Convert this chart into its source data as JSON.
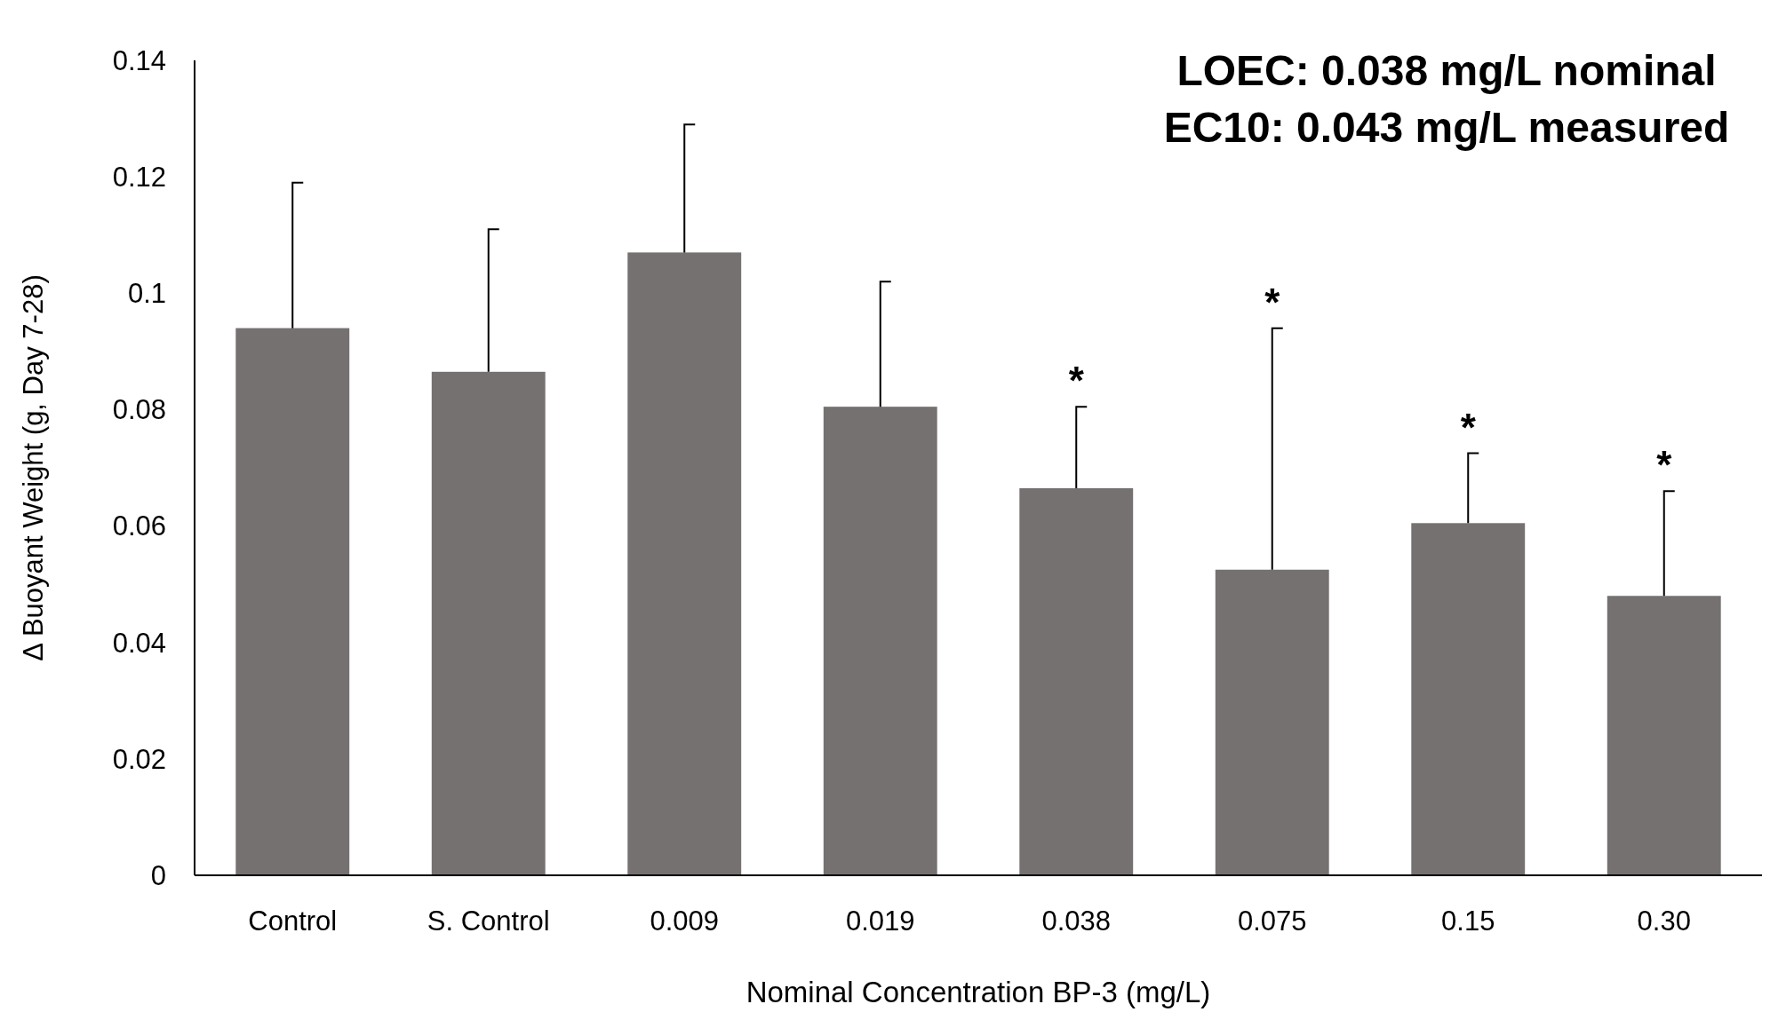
{
  "chart_data": {
    "type": "bar",
    "xlabel": "Nominal Concentration BP-3 (mg/L)",
    "ylabel": "Δ Buoyant Weight (g, Day 7-28)",
    "categories": [
      "Control",
      "S. Control",
      "0.009",
      "0.019",
      "0.038",
      "0.075",
      "0.15",
      "0.30"
    ],
    "values": [
      0.094,
      0.0865,
      0.107,
      0.0805,
      0.0665,
      0.0525,
      0.0605,
      0.048
    ],
    "errors": [
      [
        0.094,
        0.119
      ],
      [
        0.0865,
        0.111
      ],
      [
        0.107,
        0.129
      ],
      [
        0.0805,
        0.102
      ],
      [
        0.0665,
        0.0805
      ],
      [
        0.0525,
        0.094
      ],
      [
        0.0605,
        0.0725
      ],
      [
        0.048,
        0.066
      ]
    ],
    "color": "#767171",
    "ylim": [
      0,
      0.14
    ],
    "yticks": [
      0,
      0.02,
      0.04,
      0.06,
      0.08,
      0.1,
      0.12,
      0.14
    ],
    "grid": false,
    "annotations": [
      "LOEC:  0.038 mg/L nominal",
      "EC10:  0.043 mg/L measured",
      {
        "text": "*",
        "x": "0.038",
        "y": 0.0805
      },
      {
        "text": "*",
        "x": "0.075",
        "y": 0.094
      },
      {
        "text": "*",
        "x": "0.15",
        "y": 0.0725
      },
      {
        "text": "*",
        "x": "0.30",
        "y": 0.066
      }
    ]
  }
}
